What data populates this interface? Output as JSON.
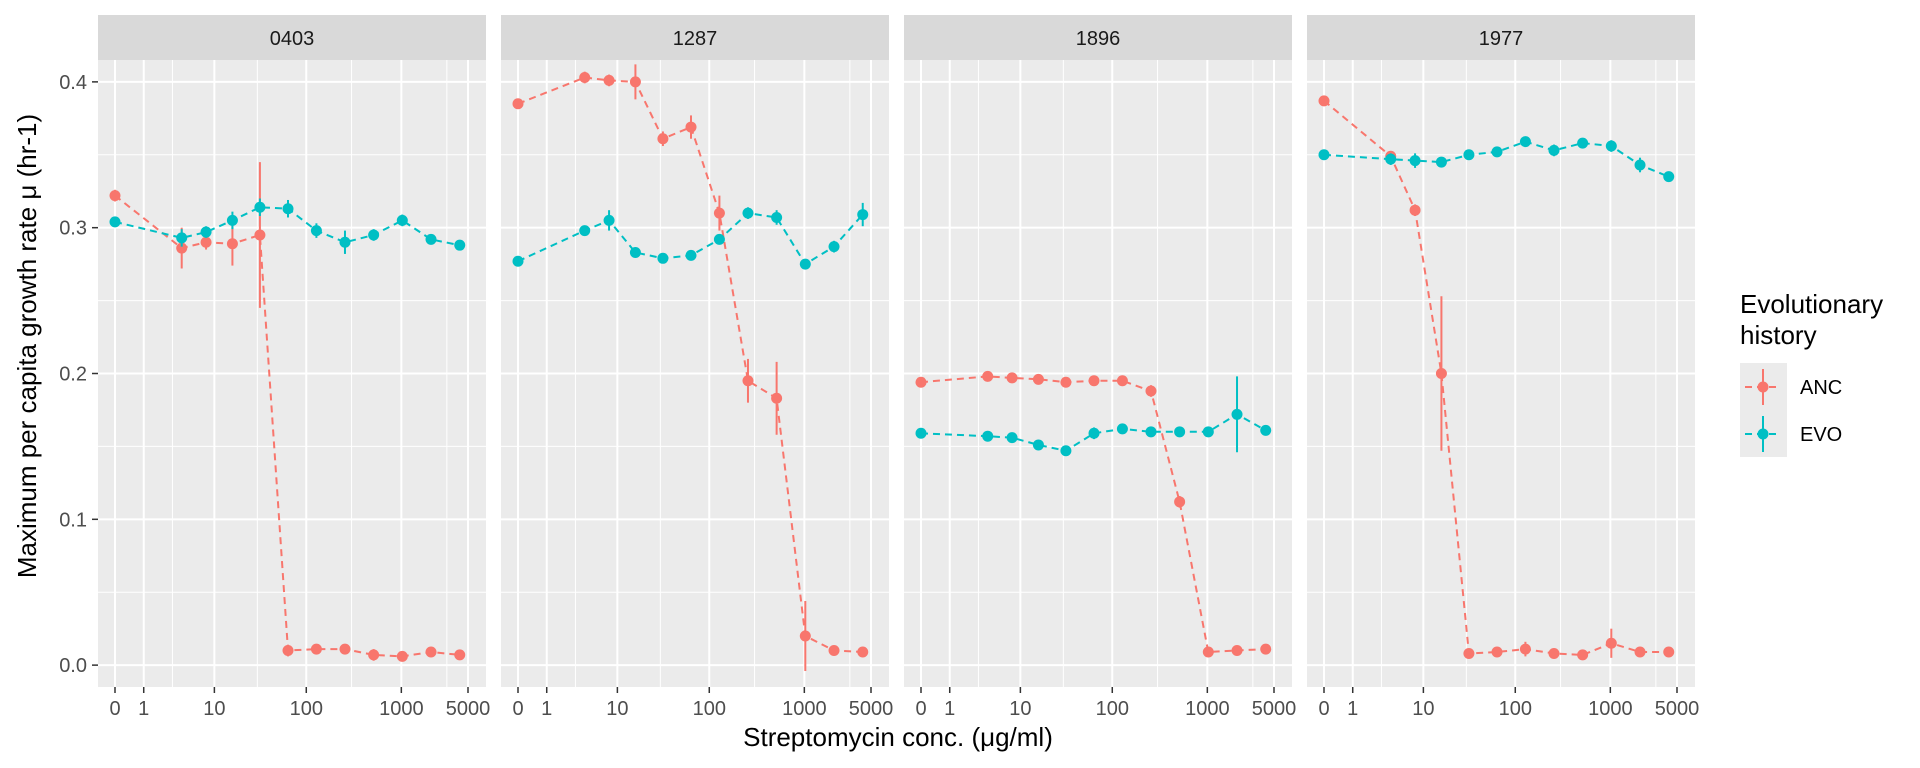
{
  "chart_data": {
    "type": "line",
    "facets": [
      "0403",
      "1287",
      "1896",
      "1977"
    ],
    "xlabel": "Streptomycin conc. (μg/ml)",
    "ylabel": "Maximum per capita growth rate μ (hr-1)",
    "x_scale": "pseudo-log",
    "x_ticks": [
      0,
      1,
      10,
      100,
      1000,
      5000
    ],
    "x_tick_labels": [
      "0",
      "1",
      "10",
      "100",
      "1000",
      "5000"
    ],
    "ylim": [
      -0.015,
      0.415
    ],
    "y_ticks": [
      0.0,
      0.1,
      0.2,
      0.3,
      0.4
    ],
    "y_tick_labels": [
      "0.0",
      "0.1",
      "0.2",
      "0.3",
      "0.4"
    ],
    "x": [
      0,
      4,
      8,
      16,
      32,
      64,
      128,
      256,
      512,
      1024,
      2048,
      4096
    ],
    "legend": {
      "title": [
        "Evolutionary",
        "history"
      ],
      "position": "right"
    },
    "series": [
      {
        "name": "ANC",
        "color": "#F8766D",
        "facet_values": [
          [
            0.322,
            0.286,
            0.29,
            0.289,
            0.295,
            0.01,
            0.011,
            0.011,
            0.007,
            0.006,
            0.009,
            0.007
          ],
          [
            0.385,
            0.403,
            0.401,
            0.4,
            0.361,
            0.369,
            0.31,
            0.195,
            0.183,
            0.02,
            0.01,
            0.009
          ],
          [
            0.194,
            0.198,
            0.197,
            0.196,
            0.194,
            0.195,
            0.195,
            0.188,
            0.112,
            0.009,
            0.01,
            0.011
          ],
          [
            0.387,
            0.349,
            0.312,
            0.2,
            0.008,
            0.009,
            0.011,
            0.008,
            0.007,
            0.015,
            0.009,
            0.009
          ]
        ],
        "facet_errors": [
          [
            0.004,
            0.014,
            0.005,
            0.015,
            0.05,
            0.004,
            0.003,
            0.003,
            0.004,
            0.003,
            0.003,
            0.003
          ],
          [
            0.003,
            0.004,
            0.004,
            0.012,
            0.005,
            0.008,
            0.012,
            0.015,
            0.025,
            0.024,
            0.003,
            0.003
          ],
          [
            0.003,
            0.003,
            0.003,
            0.003,
            0.003,
            0.003,
            0.003,
            0.004,
            0.004,
            0.003,
            0.003,
            0.003
          ],
          [
            0.003,
            0.003,
            0.004,
            0.053,
            0.003,
            0.003,
            0.005,
            0.003,
            0.003,
            0.01,
            0.003,
            0.003
          ]
        ]
      },
      {
        "name": "EVO",
        "color": "#00BFC4",
        "facet_values": [
          [
            0.304,
            0.293,
            0.297,
            0.305,
            0.314,
            0.313,
            0.298,
            0.29,
            0.295,
            0.305,
            0.292,
            0.288
          ],
          [
            0.277,
            0.298,
            0.305,
            0.283,
            0.279,
            0.281,
            0.292,
            0.31,
            0.307,
            0.275,
            0.287,
            0.309
          ],
          [
            0.159,
            0.157,
            0.156,
            0.151,
            0.147,
            0.159,
            0.162,
            0.16,
            0.16,
            0.16,
            0.172,
            0.161
          ],
          [
            0.35,
            0.347,
            0.346,
            0.345,
            0.35,
            0.352,
            0.359,
            0.353,
            0.358,
            0.356,
            0.343,
            0.335
          ]
        ],
        "facet_errors": [
          [
            0.003,
            0.006,
            0.004,
            0.006,
            0.006,
            0.006,
            0.005,
            0.008,
            0.004,
            0.004,
            0.003,
            0.003
          ],
          [
            0.003,
            0.003,
            0.007,
            0.003,
            0.003,
            0.003,
            0.003,
            0.004,
            0.005,
            0.003,
            0.004,
            0.008
          ],
          [
            0.003,
            0.003,
            0.003,
            0.003,
            0.003,
            0.004,
            0.003,
            0.003,
            0.003,
            0.003,
            0.026,
            0.003
          ],
          [
            0.003,
            0.004,
            0.005,
            0.003,
            0.003,
            0.003,
            0.003,
            0.004,
            0.003,
            0.004,
            0.005,
            0.003
          ]
        ]
      }
    ]
  }
}
